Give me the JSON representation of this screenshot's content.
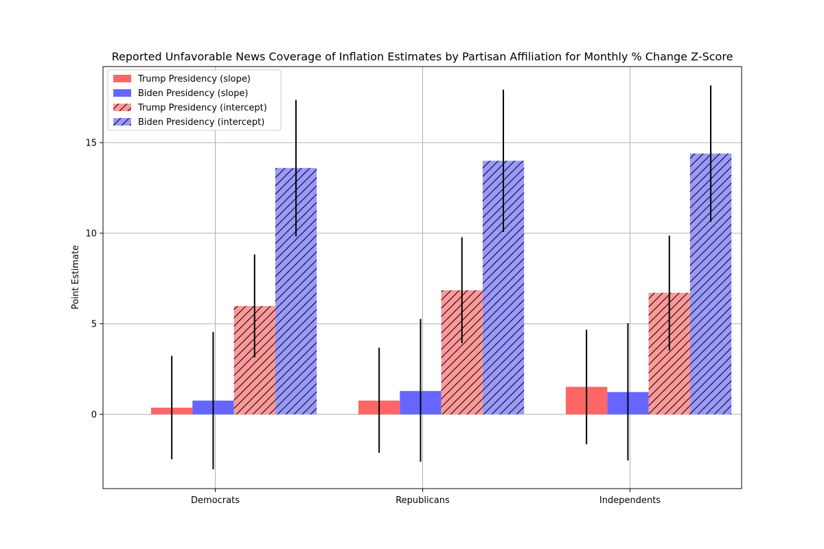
{
  "chart_data": {
    "type": "bar",
    "title": "Reported Unfavorable News Coverage of Inflation Estimates by Partisan Affiliation for Monthly % Change Z-Score",
    "xlabel": "",
    "ylabel": "Point Estimate",
    "categories": [
      "Democrats",
      "Republicans",
      "Independents"
    ],
    "ylim": [
      -4.1,
      19.2
    ],
    "yticks": [
      0,
      5,
      10,
      15
    ],
    "grid": true,
    "legend_position": "top-left",
    "series": [
      {
        "name": "Trump Presidency (slope)",
        "color": "#ff6666",
        "hatch": false,
        "values": [
          0.37,
          0.76,
          1.52
        ],
        "error_low": [
          -2.48,
          -2.12,
          -1.65
        ],
        "error_high": [
          3.23,
          3.68,
          4.67
        ]
      },
      {
        "name": "Biden Presidency (slope)",
        "color": "#6666ff",
        "hatch": false,
        "values": [
          0.76,
          1.29,
          1.23
        ],
        "error_low": [
          -3.03,
          -2.62,
          -2.54
        ],
        "error_high": [
          4.55,
          5.27,
          5.03
        ]
      },
      {
        "name": "Trump Presidency (intercept)",
        "color": "#ff9999",
        "hatch": true,
        "values": [
          5.98,
          6.85,
          6.71
        ],
        "error_low": [
          3.14,
          3.93,
          3.53
        ],
        "error_high": [
          8.83,
          9.78,
          9.87
        ]
      },
      {
        "name": "Biden Presidency (intercept)",
        "color": "#9999ff",
        "hatch": true,
        "values": [
          13.6,
          14.0,
          14.4
        ],
        "error_low": [
          9.83,
          10.07,
          10.63
        ],
        "error_high": [
          17.36,
          17.92,
          18.16
        ]
      }
    ]
  }
}
